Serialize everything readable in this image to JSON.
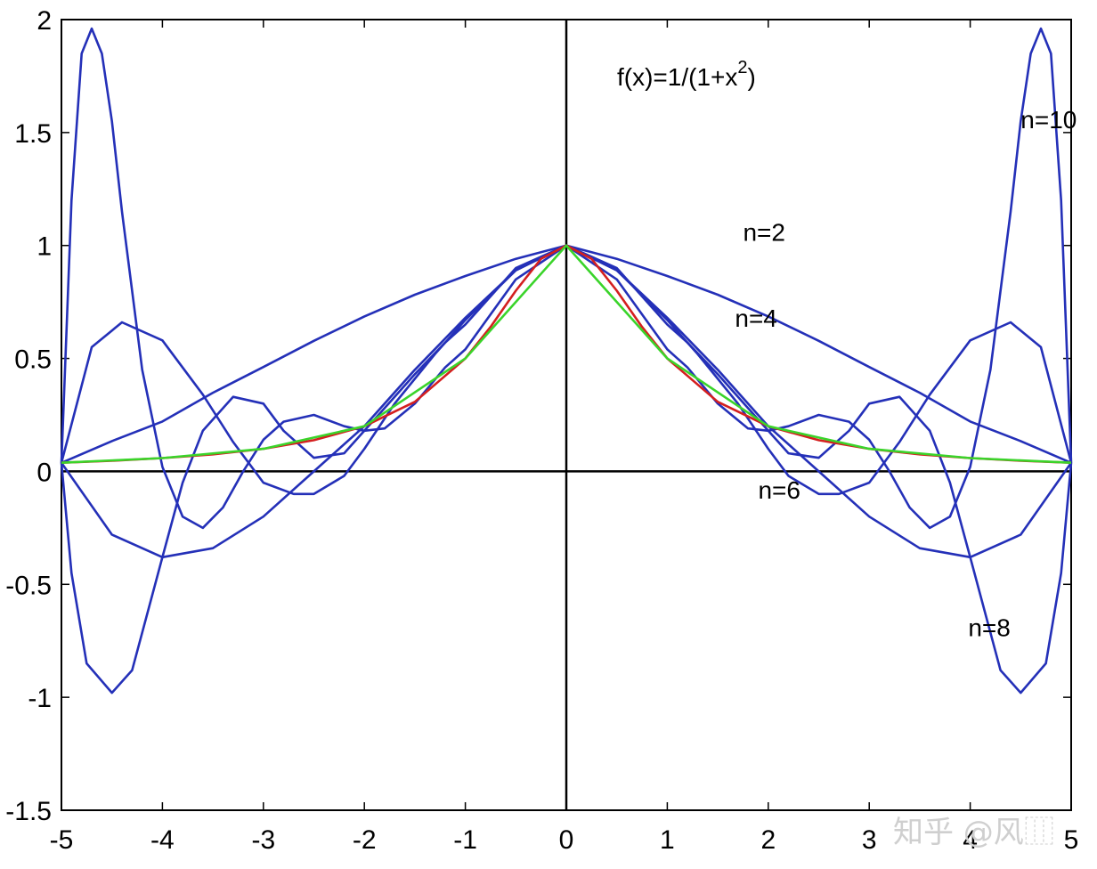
{
  "chart_data": {
    "type": "line",
    "title": "",
    "xlabel": "",
    "ylabel": "",
    "xlim": [
      -5,
      5
    ],
    "ylim": [
      -1.5,
      2
    ],
    "grid": false,
    "legend": "none",
    "xticks": [
      "-5",
      "-4",
      "-3",
      "-2",
      "-1",
      "0",
      "1",
      "2",
      "3",
      "4",
      "5"
    ],
    "yticks": [
      "-1.5",
      "-1",
      "-0.5",
      "0",
      "0.5",
      "1",
      "1.5",
      "2"
    ],
    "function_label": {
      "base": "f(x)=1/(1+x",
      "sup": "2",
      "tail": ")"
    },
    "colors": {
      "interpolants": "#2430b8",
      "exact": "#d41f1f",
      "piecewise": "#3ad42a",
      "axes": "#000000"
    },
    "series": [
      {
        "degree": 2,
        "color": "interpolants",
        "x": [
          -5,
          -4.5,
          -4,
          -3.5,
          -3,
          -2.5,
          -2,
          -1.5,
          -1,
          -0.5,
          0,
          0.5,
          1,
          1.5,
          2,
          2.5,
          3,
          3.5,
          4,
          4.5,
          5
        ],
        "y": [
          0.038,
          0.134,
          0.221,
          0.348,
          0.462,
          0.578,
          0.686,
          0.782,
          0.865,
          0.941,
          1.0,
          0.941,
          0.865,
          0.782,
          0.686,
          0.578,
          0.462,
          0.348,
          0.221,
          0.134,
          0.038
        ]
      },
      {
        "degree": 4,
        "color": "interpolants",
        "x": [
          -5,
          -4.5,
          -4,
          -3.5,
          -3,
          -2.5,
          -2,
          -1.5,
          -1,
          -0.5,
          0,
          0.5,
          1,
          1.5,
          2,
          2.5,
          3,
          3.5,
          4,
          4.5,
          5
        ],
        "y": [
          0.038,
          -0.28,
          -0.38,
          -0.34,
          -0.2,
          0.0,
          0.2,
          0.45,
          0.68,
          0.89,
          1.0,
          0.89,
          0.68,
          0.45,
          0.2,
          0.0,
          -0.2,
          -0.34,
          -0.38,
          -0.28,
          0.038
        ]
      },
      {
        "degree": 6,
        "color": "interpolants",
        "x": [
          -5,
          -4.7,
          -4.4,
          -4,
          -3.6,
          -3.3,
          -3,
          -2.7,
          -2.5,
          -2.2,
          -2,
          -1.7,
          -1.3,
          -1,
          -0.5,
          0,
          0.5,
          1,
          1.3,
          1.7,
          2,
          2.2,
          2.5,
          2.7,
          3,
          3.3,
          3.6,
          4,
          4.4,
          4.7,
          5
        ],
        "y": [
          0.038,
          0.55,
          0.66,
          0.58,
          0.34,
          0.13,
          -0.05,
          -0.1,
          -0.1,
          -0.02,
          0.1,
          0.3,
          0.52,
          0.67,
          0.89,
          1.0,
          0.89,
          0.67,
          0.52,
          0.3,
          0.1,
          -0.02,
          -0.1,
          -0.1,
          -0.05,
          0.13,
          0.34,
          0.58,
          0.66,
          0.55,
          0.038
        ]
      },
      {
        "degree": 8,
        "color": "interpolants",
        "x": [
          -5,
          -4.9,
          -4.75,
          -4.5,
          -4.3,
          -4,
          -3.8,
          -3.6,
          -3.3,
          -3,
          -2.8,
          -2.5,
          -2.2,
          -2,
          -1.8,
          -1.5,
          -1.2,
          -1,
          -0.5,
          0,
          0.5,
          1,
          1.2,
          1.5,
          1.8,
          2,
          2.2,
          2.5,
          2.8,
          3,
          3.3,
          3.6,
          3.8,
          4,
          4.3,
          4.5,
          4.75,
          4.9,
          5
        ],
        "y": [
          0.038,
          -0.45,
          -0.85,
          -0.98,
          -0.88,
          -0.38,
          -0.05,
          0.18,
          0.33,
          0.3,
          0.18,
          0.06,
          0.08,
          0.18,
          0.28,
          0.43,
          0.57,
          0.65,
          0.9,
          1.0,
          0.9,
          0.65,
          0.57,
          0.43,
          0.28,
          0.18,
          0.08,
          0.06,
          0.18,
          0.3,
          0.33,
          0.18,
          -0.05,
          -0.38,
          -0.88,
          -0.98,
          -0.85,
          -0.45,
          0.038
        ]
      },
      {
        "degree": 10,
        "color": "interpolants",
        "x": [
          -5,
          -4.9,
          -4.8,
          -4.7,
          -4.6,
          -4.5,
          -4.4,
          -4.2,
          -4,
          -3.8,
          -3.6,
          -3.4,
          -3.2,
          -3,
          -2.8,
          -2.5,
          -2.2,
          -2,
          -1.8,
          -1.5,
          -1.2,
          -1,
          -0.5,
          0,
          0.5,
          1,
          1.2,
          1.5,
          1.8,
          2,
          2.2,
          2.5,
          2.8,
          3,
          3.2,
          3.4,
          3.6,
          3.8,
          4,
          4.2,
          4.4,
          4.5,
          4.6,
          4.7,
          4.8,
          4.9,
          5
        ],
        "y": [
          0.038,
          1.2,
          1.85,
          1.96,
          1.85,
          1.55,
          1.15,
          0.45,
          0.02,
          -0.2,
          -0.25,
          -0.16,
          0.0,
          0.14,
          0.22,
          0.25,
          0.2,
          0.18,
          0.19,
          0.3,
          0.46,
          0.54,
          0.85,
          1.0,
          0.85,
          0.54,
          0.46,
          0.3,
          0.19,
          0.18,
          0.2,
          0.25,
          0.22,
          0.14,
          0.0,
          -0.16,
          -0.25,
          -0.2,
          0.02,
          0.45,
          1.15,
          1.55,
          1.85,
          1.96,
          1.85,
          1.2,
          0.038
        ]
      },
      {
        "name": "f(x)=1/(1+x²)",
        "color": "exact",
        "x": [
          -5,
          -4.5,
          -4,
          -3.5,
          -3,
          -2.5,
          -2,
          -1.5,
          -1,
          -0.75,
          -0.5,
          -0.25,
          0,
          0.25,
          0.5,
          0.75,
          1,
          1.5,
          2,
          2.5,
          3,
          3.5,
          4,
          4.5,
          5
        ],
        "y": [
          0.0385,
          0.047,
          0.0588,
          0.0755,
          0.1,
          0.138,
          0.2,
          0.308,
          0.5,
          0.64,
          0.8,
          0.941,
          1.0,
          0.941,
          0.8,
          0.64,
          0.5,
          0.308,
          0.2,
          0.138,
          0.1,
          0.0755,
          0.0588,
          0.047,
          0.0385
        ]
      },
      {
        "color": "piecewise",
        "x": [
          -5,
          -4,
          -3,
          -2,
          -1,
          0,
          1,
          2,
          3,
          4,
          5
        ],
        "y": [
          0.0385,
          0.0588,
          0.1,
          0.2,
          0.5,
          1.0,
          0.5,
          0.2,
          0.1,
          0.0588,
          0.0385
        ]
      }
    ],
    "annotations": [
      {
        "text": "n=10",
        "x": 4.5,
        "y": 1.52
      },
      {
        "text": "n=2",
        "x": 1.75,
        "y": 1.02
      },
      {
        "text": "n=4",
        "x": 1.67,
        "y": 0.64
      },
      {
        "text": "n=6",
        "x": 1.9,
        "y": -0.12
      },
      {
        "text": "n=8",
        "x": 3.98,
        "y": -0.73
      }
    ],
    "watermark": "知乎 @风",
    "watermark_glyph": "⿲"
  }
}
